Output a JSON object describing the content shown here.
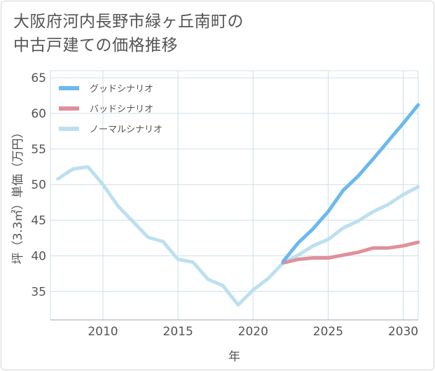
{
  "title_lines": [
    "大阪府河内長野市緑ヶ丘南町の",
    "中古戸建ての価格推移"
  ],
  "colors": {
    "good": "#6cb9ec",
    "bad": "#e0909a",
    "normal": "#bde0ef",
    "grid": "#cfdfe8",
    "axis": "#555555"
  },
  "chart_data": {
    "type": "line",
    "title": "大阪府河内長野市緑ヶ丘南町の中古戸建ての価格推移",
    "xlabel": "年",
    "ylabel": "坪（3.3㎡）単価（万円）",
    "xlim": [
      2006.5,
      2031
    ],
    "ylim": [
      31,
      66
    ],
    "xticks": [
      2010,
      2015,
      2020,
      2025,
      2030
    ],
    "yticks": [
      35,
      40,
      45,
      50,
      55,
      60,
      65
    ],
    "legend_position": "top-left",
    "series": [
      {
        "name": "グッドシナリオ",
        "color_key": "good",
        "x": [
          2022,
          2023,
          2024,
          2025,
          2026,
          2027,
          2028,
          2029,
          2030,
          2031
        ],
        "y": [
          39.2,
          41.8,
          43.8,
          46.2,
          49.2,
          51.2,
          53.6,
          56.1,
          58.6,
          61.2
        ]
      },
      {
        "name": "バッドシナリオ",
        "color_key": "bad",
        "x": [
          2022,
          2023,
          2024,
          2025,
          2026,
          2027,
          2028,
          2029,
          2030,
          2031
        ],
        "y": [
          39.0,
          39.5,
          39.7,
          39.7,
          40.1,
          40.5,
          41.1,
          41.1,
          41.4,
          41.9
        ]
      },
      {
        "name": "ノーマルシナリオ",
        "color_key": "normal",
        "x": [
          2007,
          2008,
          2009,
          2010,
          2011,
          2012,
          2013,
          2014,
          2015,
          2016,
          2017,
          2018,
          2019,
          2020,
          2021,
          2022,
          2023,
          2024,
          2025,
          2026,
          2027,
          2028,
          2029,
          2030,
          2031
        ],
        "y": [
          50.8,
          52.2,
          52.5,
          50.0,
          47.0,
          44.8,
          42.6,
          42.0,
          39.5,
          39.1,
          36.7,
          35.8,
          33.1,
          35.2,
          36.8,
          39.0,
          40.1,
          41.4,
          42.3,
          43.9,
          44.9,
          46.2,
          47.2,
          48.6,
          49.7
        ]
      }
    ]
  }
}
